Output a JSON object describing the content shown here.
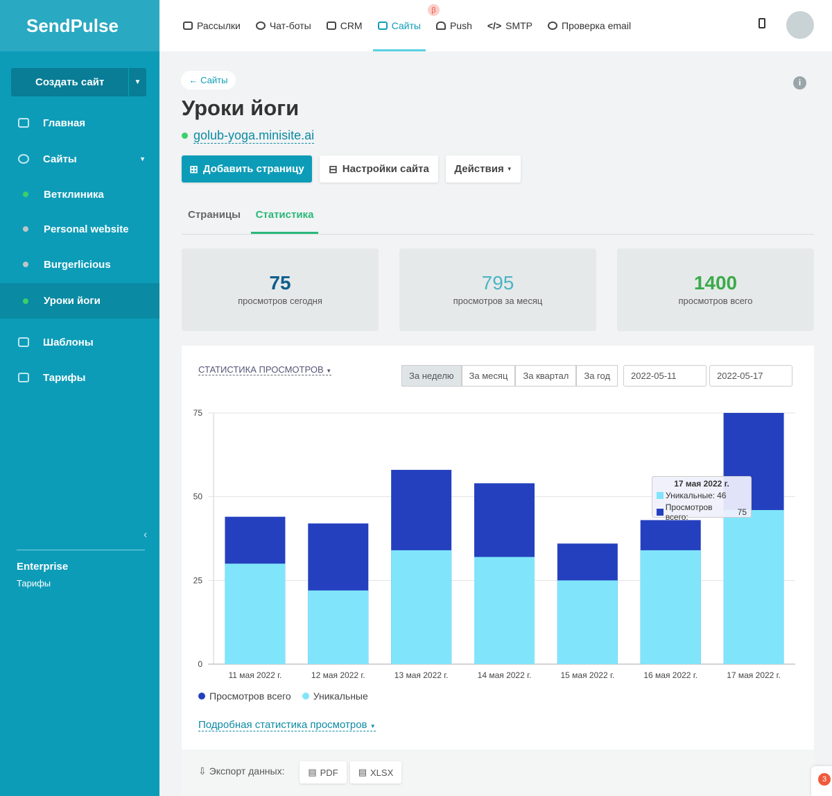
{
  "sidebar": {
    "logo": "SendPulse",
    "create_button": "Создать сайт",
    "nav": [
      "Главная",
      "Сайты",
      "Ветклиника",
      "Personal website",
      "Burgerlicious",
      "Уроки йоги",
      "Шаблоны",
      "Тарифы"
    ],
    "plan": "Enterprise",
    "plan_link": "Тарифы"
  },
  "topnav": {
    "items": [
      "Рассылки",
      "Чат-боты",
      "CRM",
      "Сайты",
      "Push",
      "SMTP",
      "Проверка email"
    ],
    "beta": "β"
  },
  "page": {
    "back": "← Сайты",
    "title": "Уроки йоги",
    "domain": "golub-yoga.minisite.ai",
    "buttons": [
      "Добавить страницу",
      "Настройки сайта",
      "Действия"
    ],
    "tabs": [
      "Страницы",
      "Статистика"
    ],
    "stats": [
      {
        "value": "75",
        "label": "просмотров сегодня"
      },
      {
        "value": "795",
        "label": "просмотров за месяц"
      },
      {
        "value": "1400",
        "label": "просмотров всего"
      }
    ],
    "details_link": "Подробная статистика просмотров",
    "export_label": "Экспорт данных:",
    "export_buttons": [
      "PDF",
      "XLSX"
    ],
    "notification": "3"
  },
  "chart_data": {
    "type": "bar",
    "title": "СТАТИСТИКА ПРОСМОТРОВ",
    "periods": [
      "За неделю",
      "За месяц",
      "За квартал",
      "За год"
    ],
    "date_from": "2022-05-11",
    "date_to": "2022-05-17",
    "categories": [
      "11 мая 2022 г.",
      "12 мая 2022 г.",
      "13 мая 2022 г.",
      "14 мая 2022 г.",
      "15 мая 2022 г.",
      "16 мая 2022 г.",
      "17 мая 2022 г."
    ],
    "series": [
      {
        "name": "Просмотров всего",
        "color": "#2440bf",
        "values": [
          44,
          42,
          58,
          54,
          36,
          43,
          75
        ]
      },
      {
        "name": "Уникальные",
        "color": "#80e5fb",
        "values": [
          30,
          22,
          34,
          32,
          25,
          34,
          46
        ]
      }
    ],
    "ylim": [
      0,
      75
    ],
    "yticks": [
      0,
      25,
      50,
      75
    ],
    "grid": true,
    "tooltip": {
      "title": "17 мая 2022 г.",
      "rows": [
        "Уникальные:",
        "Просмотров всего:"
      ]
    }
  }
}
